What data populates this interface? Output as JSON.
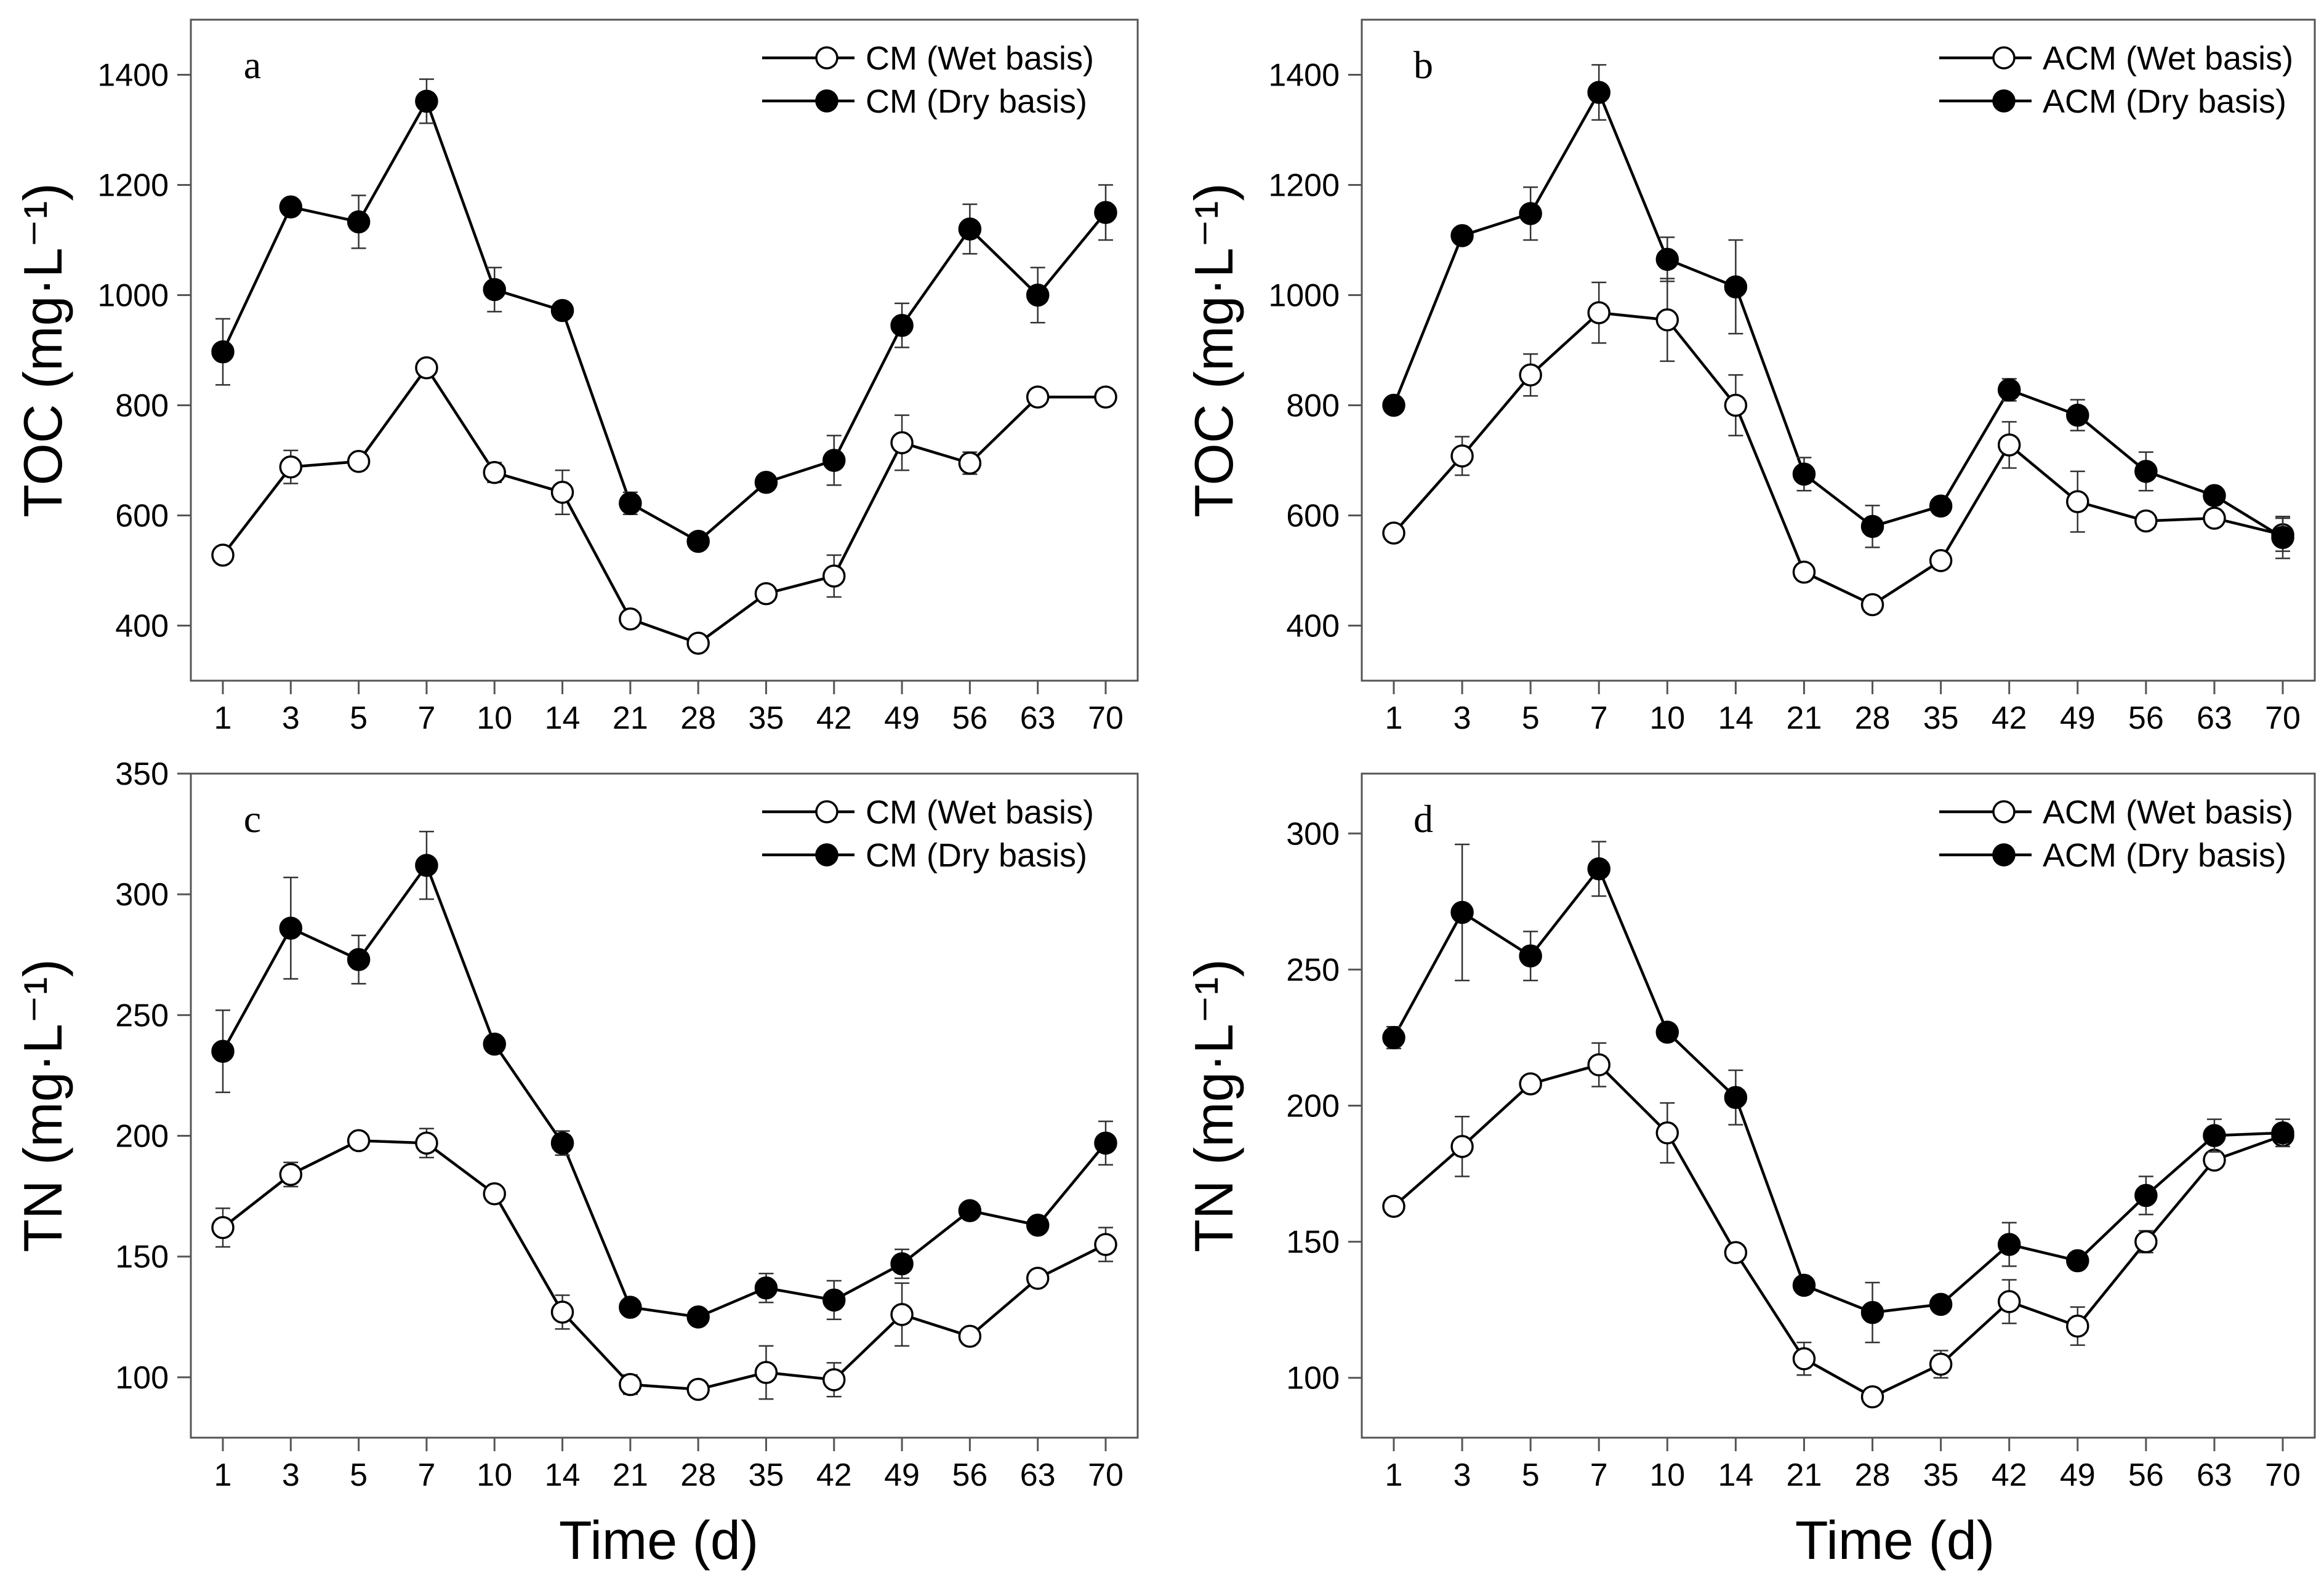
{
  "figure": {
    "xlabel": "Time (d)"
  },
  "chart_data": [
    {
      "panel": "a",
      "type": "line",
      "ylabel": "TOC (mg·L⁻¹)",
      "ylim": [
        300,
        1500
      ],
      "yticks": [
        400,
        600,
        800,
        1000,
        1200,
        1400
      ],
      "x_categories": [
        "1",
        "3",
        "5",
        "7",
        "10",
        "14",
        "21",
        "28",
        "35",
        "42",
        "49",
        "56",
        "63",
        "70"
      ],
      "legend_position": "top-right",
      "grid": false,
      "series": [
        {
          "name": "CM (Wet basis)",
          "marker": "open-circle",
          "values": [
            528,
            688,
            698,
            868,
            678,
            642,
            412,
            368,
            458,
            490,
            732,
            695,
            815,
            815
          ],
          "errors": [
            12,
            30,
            12,
            10,
            18,
            40,
            12,
            10,
            12,
            38,
            50,
            20,
            15,
            15
          ]
        },
        {
          "name": "CM (Dry basis)",
          "marker": "filled-circle",
          "values": [
            897,
            1160,
            1133,
            1352,
            1010,
            972,
            622,
            553,
            660,
            700,
            945,
            1120,
            1000,
            1150
          ],
          "errors": [
            60,
            12,
            48,
            40,
            40,
            12,
            20,
            10,
            12,
            45,
            40,
            45,
            50,
            50
          ]
        }
      ]
    },
    {
      "panel": "b",
      "type": "line",
      "ylabel": "TOC (mg·L⁻¹)",
      "ylim": [
        300,
        1500
      ],
      "yticks": [
        400,
        600,
        800,
        1000,
        1200,
        1400
      ],
      "x_categories": [
        "1",
        "3",
        "5",
        "7",
        "10",
        "14",
        "21",
        "28",
        "35",
        "42",
        "49",
        "56",
        "63",
        "70"
      ],
      "legend_position": "top-right",
      "grid": false,
      "series": [
        {
          "name": "ACM (Wet basis)",
          "marker": "open-circle",
          "values": [
            568,
            708,
            855,
            968,
            955,
            800,
            497,
            438,
            518,
            728,
            625,
            590,
            595,
            565
          ],
          "errors": [
            12,
            35,
            38,
            55,
            75,
            55,
            15,
            10,
            15,
            42,
            55,
            15,
            10,
            30
          ]
        },
        {
          "name": "ACM (Dry basis)",
          "marker": "filled-circle",
          "values": [
            800,
            1108,
            1148,
            1368,
            1065,
            1015,
            675,
            580,
            617,
            828,
            782,
            680,
            636,
            560
          ],
          "errors": [
            12,
            12,
            48,
            50,
            40,
            85,
            30,
            38,
            12,
            20,
            28,
            35,
            15,
            38
          ]
        }
      ]
    },
    {
      "panel": "c",
      "type": "line",
      "ylabel": "TN (mg·L⁻¹)",
      "ylim": [
        75,
        350
      ],
      "yticks": [
        100,
        150,
        200,
        250,
        300,
        350
      ],
      "x_categories": [
        "1",
        "3",
        "5",
        "7",
        "10",
        "14",
        "21",
        "28",
        "35",
        "42",
        "49",
        "56",
        "63",
        "70"
      ],
      "legend_position": "top-right",
      "grid": false,
      "series": [
        {
          "name": "CM (Wet basis)",
          "marker": "open-circle",
          "values": [
            162,
            184,
            198,
            197,
            176,
            127,
            97,
            95,
            102,
            99,
            126,
            117,
            141,
            155
          ],
          "errors": [
            8,
            5,
            2,
            6,
            2,
            7,
            4,
            2,
            11,
            7,
            13,
            2,
            3,
            7
          ]
        },
        {
          "name": "CM (Dry basis)",
          "marker": "filled-circle",
          "values": [
            235,
            286,
            273,
            312,
            238,
            197,
            129,
            125,
            137,
            132,
            147,
            169,
            163,
            197
          ],
          "errors": [
            17,
            21,
            10,
            14,
            2,
            5,
            2,
            2,
            6,
            8,
            6,
            2,
            3,
            9
          ]
        }
      ]
    },
    {
      "panel": "d",
      "type": "line",
      "ylabel": "TN (mg·L⁻¹)",
      "ylim": [
        78,
        322
      ],
      "yticks": [
        100,
        150,
        200,
        250,
        300
      ],
      "x_categories": [
        "1",
        "3",
        "5",
        "7",
        "10",
        "14",
        "21",
        "28",
        "35",
        "42",
        "49",
        "56",
        "63",
        "70"
      ],
      "legend_position": "top-right",
      "grid": false,
      "series": [
        {
          "name": "ACM (Wet basis)",
          "marker": "open-circle",
          "values": [
            163,
            185,
            208,
            215,
            190,
            146,
            107,
            93,
            105,
            128,
            119,
            150,
            180,
            189
          ],
          "errors": [
            3,
            11,
            2,
            8,
            11,
            2,
            6,
            3,
            5,
            8,
            7,
            4,
            3,
            3
          ]
        },
        {
          "name": "ACM (Dry basis)",
          "marker": "filled-circle",
          "values": [
            225,
            271,
            255,
            287,
            227,
            203,
            134,
            124,
            127,
            149,
            143,
            167,
            189,
            190
          ],
          "errors": [
            4,
            25,
            9,
            10,
            2,
            10,
            2,
            11,
            2,
            8,
            3,
            7,
            6,
            5
          ]
        }
      ]
    }
  ]
}
